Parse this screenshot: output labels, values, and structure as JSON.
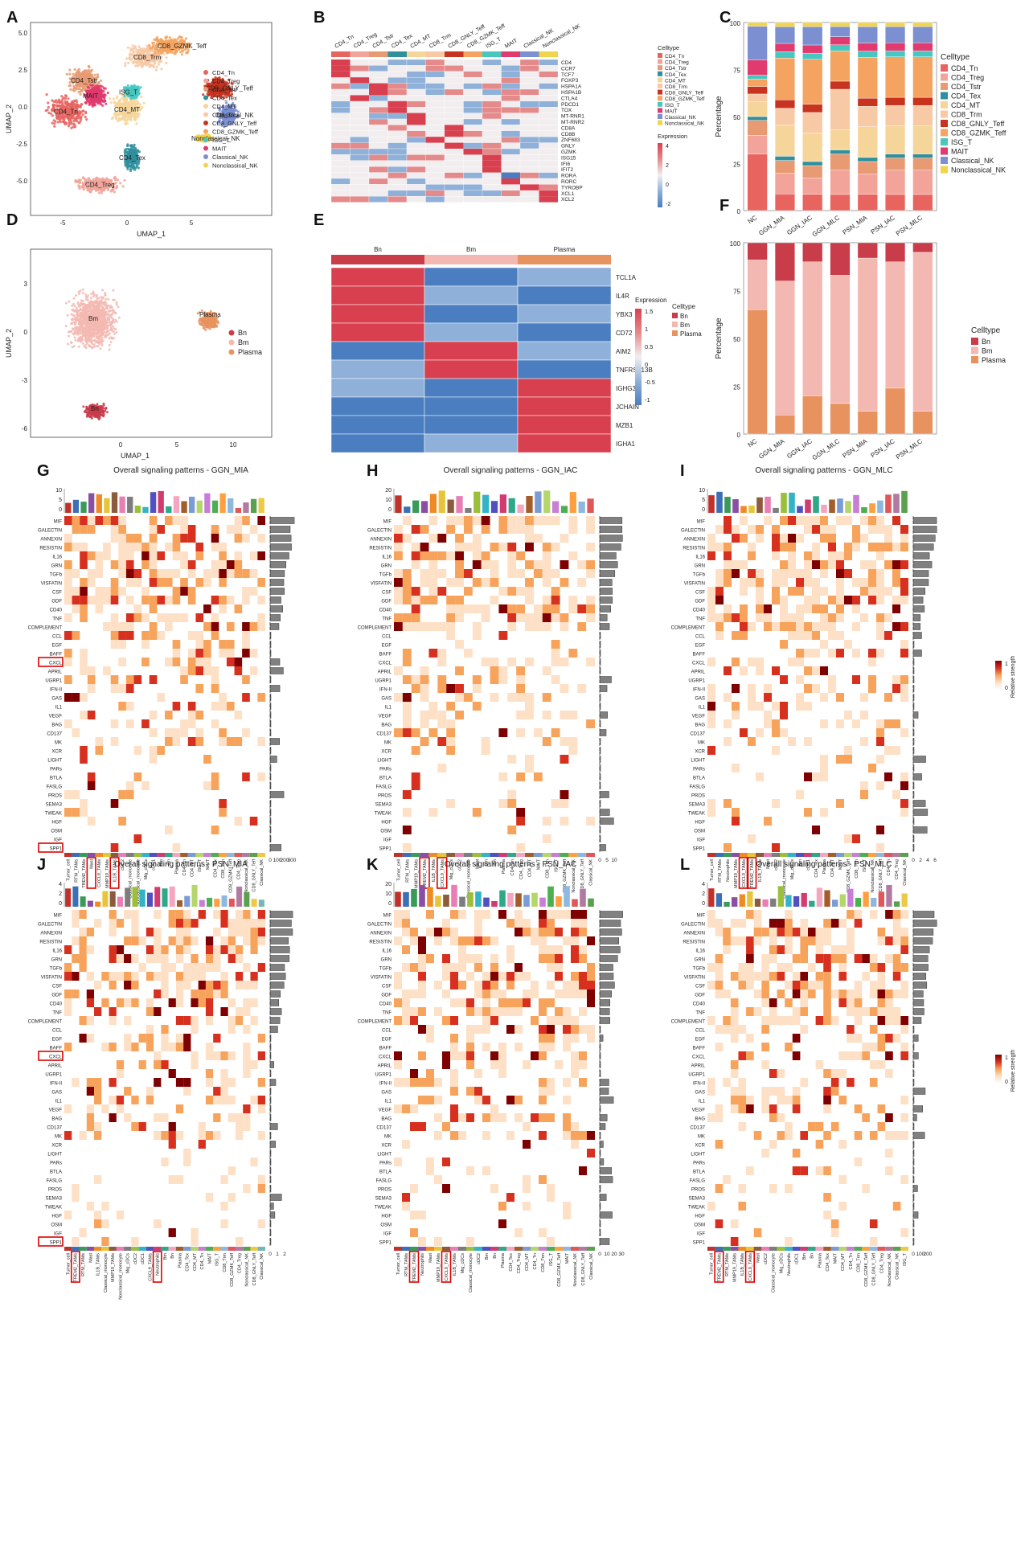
{
  "colors": {
    "tcell": [
      "#e8645f",
      "#f2a49a",
      "#e89b72",
      "#2f8f9d",
      "#f6d59a",
      "#f8c9a5",
      "#c7331f",
      "#f4a460",
      "#48c7c0",
      "#e03a6f",
      "#7b8fd1",
      "#f2d34c"
    ],
    "bcell": [
      "#c93c4a",
      "#f3b8b1",
      "#e8935f"
    ],
    "heat": [
      "#4a7ec0",
      "#8fb0d8",
      "#f2eef0",
      "#e58a8a",
      "#d9404f"
    ],
    "signal": [
      "#ffffff",
      "#fde0c5",
      "#f7a35c",
      "#d7301f",
      "#7f0000"
    ]
  },
  "panels": {
    "A": {
      "letter": "A",
      "xlabel": "UMAP_1",
      "ylabel": "UMAP_2",
      "xticks": [
        "-5",
        "0",
        "5"
      ],
      "yticks": [
        "5.0",
        "2.5",
        "0.0",
        "-2.5",
        "-5.0"
      ],
      "clusters": [
        "CD4_Tn",
        "CD4_Treg",
        "CD4_Tstr",
        "CD4_Tex",
        "CD4_MT",
        "CD8_Trm",
        "CD8_GNLY_Teff",
        "CD8_GZMK_Teff",
        "ISG_T",
        "MAIT",
        "Classical_NK",
        "Nonclassical_NK"
      ],
      "labels": [
        "CD4_Tn",
        "CD4_Treg",
        "CD4_Tstr",
        "CD4_Tex",
        "CD4_MT",
        "CD8_Trm",
        "CD8_GNLY_Teff",
        "CD8_GZMK_Teff",
        "ISG_T",
        "MAIT",
        "Classical_NK",
        "Nonclassical_NK"
      ]
    },
    "B": {
      "letter": "B",
      "legend_title": "Celltype",
      "expr_title": "Expression",
      "scale": [
        "4",
        "2",
        "0",
        "-2"
      ],
      "columns": [
        "CD4_Tn",
        "CD4_Treg",
        "CD4_Tstr",
        "CD4_Tex",
        "CD4_MT",
        "CD8_Trm",
        "CD8_GNLY_Teff",
        "CD8_GZMK_Teff",
        "ISG_T",
        "MAIT",
        "Classical_NK",
        "Nonclassical_NK"
      ],
      "genes": [
        "CD4",
        "CCR7",
        "TCF7",
        "FOXP3",
        "HSPA1A",
        "HSPA1B",
        "CTLA4",
        "PDCD1",
        "TOX",
        "MT-RNR1",
        "MT-RNR2",
        "CD8A",
        "CD8B",
        "ZNF683",
        "GNLY",
        "GZMK",
        "ISG15",
        "IFI6",
        "IFIT2",
        "RORA",
        "RORC",
        "TYROBP",
        "XCL1",
        "XCL2"
      ]
    },
    "C": {
      "letter": "C",
      "ylabel": "Percentage",
      "legend_title": "Celltype",
      "yticks": [
        "100",
        "75",
        "50",
        "25",
        "0"
      ],
      "samples": [
        "NC",
        "GGN_MIA",
        "GGN_IAC",
        "GGN_MLC",
        "PSN_MIA",
        "PSN_IAC",
        "PSN_MLC"
      ],
      "series": [
        {
          "name": "CD4_Tn",
          "values": [
            30,
            8,
            8,
            8,
            8,
            8,
            8
          ]
        },
        {
          "name": "CD4_Treg",
          "values": [
            10,
            10,
            8,
            12,
            10,
            12,
            12
          ]
        },
        {
          "name": "CD4_Tstr",
          "values": [
            8,
            6,
            6,
            8,
            6,
            6,
            6
          ]
        },
        {
          "name": "CD4_Tex",
          "values": [
            2,
            2,
            2,
            2,
            2,
            2,
            2
          ]
        },
        {
          "name": "CD4_MT",
          "values": [
            8,
            15,
            14,
            10,
            15,
            14,
            14
          ]
        },
        {
          "name": "CD8_Trm",
          "values": [
            4,
            8,
            10,
            20,
            10,
            10,
            10
          ]
        },
        {
          "name": "CD8_GNLY_Teff",
          "values": [
            4,
            4,
            4,
            4,
            4,
            4,
            4
          ]
        },
        {
          "name": "CD8_GZMK_Teff",
          "values": [
            4,
            20,
            22,
            15,
            20,
            20,
            20
          ]
        },
        {
          "name": "ISG_T",
          "values": [
            2,
            3,
            3,
            3,
            3,
            3,
            3
          ]
        },
        {
          "name": "MAIT",
          "values": [
            8,
            4,
            4,
            4,
            4,
            4,
            4
          ]
        },
        {
          "name": "Classical_NK",
          "values": [
            18,
            8,
            9,
            5,
            8,
            8,
            8
          ]
        },
        {
          "name": "Nonclassical_NK",
          "values": [
            2,
            2,
            2,
            2,
            2,
            2,
            2
          ]
        }
      ]
    },
    "D": {
      "letter": "D",
      "xlabel": "UMAP_1",
      "ylabel": "UMAP_2",
      "xticks": [
        "0",
        "5",
        "10"
      ],
      "yticks": [
        "3",
        "0",
        "-3",
        "-6"
      ],
      "clusters": [
        "Bn",
        "Bm",
        "Plasma"
      ]
    },
    "E": {
      "letter": "E",
      "expr_title": "Expression",
      "legend_title": "Celltype",
      "scale": [
        "1.5",
        "1",
        "0.5",
        "0",
        "-0.5",
        "-1"
      ],
      "columns": [
        "Bn",
        "Bm",
        "Plasma"
      ],
      "genes": [
        "TCL1A",
        "IL4R",
        "YBX3",
        "CD72",
        "AIM2",
        "TNFRSF13B",
        "IGHG3",
        "JCHAIN",
        "MZB1",
        "IGHA1"
      ],
      "legend": [
        "Bn",
        "Bm",
        "Plasma"
      ]
    },
    "F": {
      "letter": "F",
      "ylabel": "Percentage",
      "legend_title": "Celltype",
      "yticks": [
        "100",
        "75",
        "50",
        "25",
        "0"
      ],
      "samples": [
        "NC",
        "GGN_MIA",
        "GGN_IAC",
        "GGN_MLC",
        "PSN_MIA",
        "PSN_IAC",
        "PSN_MLC"
      ],
      "series": [
        {
          "name": "Plasma",
          "values": [
            65,
            10,
            20,
            16,
            12,
            24,
            12
          ]
        },
        {
          "name": "Bm",
          "values": [
            26,
            70,
            70,
            67,
            80,
            66,
            83
          ]
        },
        {
          "name": "Bn",
          "values": [
            9,
            20,
            10,
            17,
            8,
            10,
            5
          ]
        }
      ],
      "legend": [
        "Bn",
        "Bm",
        "Plasma"
      ]
    },
    "signaling": {
      "pathways": [
        "MIF",
        "GALECTIN",
        "ANNEXIN",
        "RESISTIN",
        "IL16",
        "GRN",
        "TGFb",
        "VISFATIN",
        "CSF",
        "GDF",
        "CD40",
        "TNF",
        "COMPLEMENT",
        "CCL",
        "EGF",
        "BAFF",
        "CXCL",
        "APRIL",
        "UGRP1",
        "IFN-II",
        "GAS",
        "IL1",
        "VEGF",
        "BAG",
        "CD137",
        "MK",
        "XCR",
        "LIGHT",
        "PARs",
        "BTLA",
        "FASLG",
        "PROS",
        "SEMA3",
        "TWEAK",
        "HGF",
        "OSM",
        "IGF",
        "SPP1"
      ],
      "strength_label": "Relative strength",
      "strength_ticks": [
        "1",
        "0"
      ],
      "grids": [
        {
          "letter": "G",
          "title": "Overall signaling patterns - GGN_MIA",
          "top_ticks": [
            "10",
            "5",
            "0"
          ],
          "side_ticks": [
            "0",
            "100",
            "200",
            "300"
          ],
          "highlight_rows": [
            "CXCL",
            "SPP1"
          ],
          "highlight_cols": [
            3,
            6
          ],
          "cells": [
            "Tumor_cell",
            "RTM_TAMs",
            "TREM2_TAMs",
            "Mast",
            "CXCL9_TAMs",
            "MMP19_TAMs",
            "IL1B_TAMs",
            "cDC2",
            "Classical_monocyte",
            "Nonclassical_monocyte",
            "Mig_cDCs",
            "cDC1",
            "Bm",
            "Bn",
            "Plasma",
            "CD4_Tn",
            "CD4_MT",
            "ISG_T",
            "MAIT",
            "CD4_Tex",
            "CD8_Trm",
            "CD8_GZMK_Teff",
            "CD4_Treg",
            "Nonclassical_NK",
            "CD8_GNLY_Teff",
            "Classical_NK"
          ]
        },
        {
          "letter": "H",
          "title": "Overall signaling patterns - GGN_IAC",
          "top_ticks": [
            "20",
            "10",
            "0"
          ],
          "side_ticks": [
            "0",
            "5",
            "10"
          ],
          "highlight_rows": [],
          "highlight_cols": [
            3,
            5
          ],
          "cells": [
            "Tumor_cell",
            "RTM_TAMs",
            "MMP19_TAMs",
            "TREM2_TAMs",
            "IL1B_TAMs",
            "CXCL9_TAMs",
            "Mig_cDCs",
            "cDC2",
            "Classical_monocyte",
            "Mast",
            "Bm",
            "Bn",
            "Plasma",
            "CD4_Tn",
            "CD4_Treg",
            "CD4_MT",
            "MAIT",
            "CD8_Trm",
            "ISG_T",
            "CD8_GZMK_Teff",
            "Nonclassical_NK",
            "CD8_GNLY_Teff",
            "Classical_NK"
          ]
        },
        {
          "letter": "I",
          "title": "Overall signaling patterns - GGN_MLC",
          "top_ticks": [
            "10",
            "5",
            "0"
          ],
          "side_ticks": [
            "0",
            "2",
            "4",
            "6"
          ],
          "highlight_rows": [],
          "highlight_cols": [
            4,
            5
          ],
          "cells": [
            "Tumor_cell",
            "RTM_TAMs",
            "Neutrophils",
            "MMP19_TAMs",
            "CXCL9_TAMs",
            "TREM2_TAMs",
            "IL1B_TAMs",
            "Mast",
            "cDC2",
            "Classical_monocyte",
            "Mig_cDCs",
            "Bm",
            "cDC1",
            "CD4_Tex",
            "Plasma",
            "CD4_MT",
            "MAIT",
            "CD8_GZMK_Teff",
            "CD8_Trm",
            "ISG_T",
            "Nonclassical_NK",
            "CD8_GNLY_Teff",
            "CD4_Tn",
            "CD4_Treg",
            "Classical_NK"
          ]
        },
        {
          "letter": "J",
          "title": "Overall signaling patterns - PSN_MIA",
          "top_ticks": [
            "4",
            "2",
            "0"
          ],
          "side_ticks": [
            "0",
            "1",
            "2"
          ],
          "highlight_rows": [
            "CXCL",
            "SPP1"
          ],
          "highlight_cols": [
            1,
            12
          ],
          "cells": [
            "Tumor_cell",
            "TREM2_TAMs",
            "RTM_TAMs",
            "Mast",
            "IL1B_TAMs",
            "Classical_monocyte",
            "MMP19_TAMs",
            "Nonclassical_monocyte",
            "Mig_cDCs",
            "cDC2",
            "cDC1",
            "CXCL9_TAMs",
            "Neutrophils",
            "Bm",
            "Bn",
            "Plasma",
            "CD4_Tex",
            "CD4_MT",
            "CD4_Tn",
            "MAIT",
            "ISG_T",
            "CD8_Trm",
            "CD8_GZMK_Teff",
            "CD4_Treg",
            "Nonclassical_NK",
            "CD8_GNLY_Teff",
            "Classical_NK"
          ]
        },
        {
          "letter": "K",
          "title": "Overall signaling patterns - PSN_IAC",
          "top_ticks": [
            "20",
            "10",
            "0"
          ],
          "side_ticks": [
            "0",
            "10",
            "20",
            "30"
          ],
          "highlight_rows": [],
          "highlight_cols": [
            2,
            6
          ],
          "cells": [
            "Tumor_cell",
            "RTM_TAMs",
            "TREM2_TAMs",
            "Neutrophils",
            "Mast",
            "MMP19_TAMs",
            "CXCL9_TAMs",
            "IL1B_TAMs",
            "Mig_cDCs",
            "Classical_monocyte",
            "cDC2",
            "Bm",
            "Bn",
            "Plasma",
            "CD4_Tex",
            "CD4_Treg",
            "CD4_MT",
            "CD4_Tn",
            "CD8_Trm",
            "ISG_T",
            "CD8_GZMK_Teff",
            "MAIT",
            "Nonclassical_NK",
            "CD8_GNLY_Teff",
            "Classical_NK"
          ]
        },
        {
          "letter": "L",
          "title": "Overall signaling patterns - PSN_MLC",
          "top_ticks": [
            "4",
            "2",
            "0"
          ],
          "side_ticks": [
            "0",
            "100",
            "200"
          ],
          "highlight_rows": [],
          "highlight_cols": [
            1,
            5
          ],
          "cells": [
            "Tumor_cell",
            "TREM2_TAMs",
            "RTM_TAMs",
            "MMP19_TAMs",
            "IL1B_TAMs",
            "CXCL9_TAMs",
            "Mast",
            "cDC2",
            "Classical_monocyte",
            "Mig_cDCs",
            "Neutrophils",
            "cDC1",
            "Bm",
            "Bn",
            "Plasma",
            "CD4_Tex",
            "MAIT",
            "CD4_MT",
            "CD4_Tn",
            "CD8_Trm",
            "CD8_GZMK_Teff",
            "CD8_GNLY_Teff",
            "CD4_Treg",
            "Nonclassical_NK",
            "Classical_NK",
            "ISG_T"
          ]
        }
      ]
    }
  }
}
